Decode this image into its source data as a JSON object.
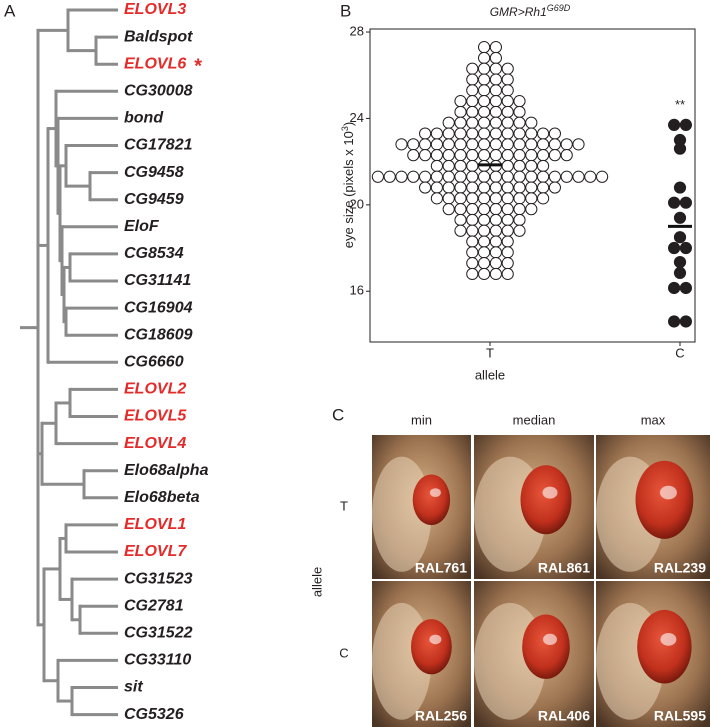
{
  "tree_panel": {
    "label": "A",
    "leaves": [
      {
        "name": "ELOVL3",
        "color": "#e52a2a"
      },
      {
        "name": "Baldspot",
        "color": "#231f20"
      },
      {
        "name": "ELOVL6",
        "color": "#e52a2a",
        "marker": "*"
      },
      {
        "name": "CG30008",
        "color": "#231f20"
      },
      {
        "name": "bond",
        "color": "#231f20"
      },
      {
        "name": "CG17821",
        "color": "#231f20"
      },
      {
        "name": "CG9458",
        "color": "#231f20"
      },
      {
        "name": "CG9459",
        "color": "#231f20"
      },
      {
        "name": "EloF",
        "color": "#231f20"
      },
      {
        "name": "CG8534",
        "color": "#231f20"
      },
      {
        "name": "CG31141",
        "color": "#231f20"
      },
      {
        "name": "CG16904",
        "color": "#231f20"
      },
      {
        "name": "CG18609",
        "color": "#231f20"
      },
      {
        "name": "CG6660",
        "color": "#231f20"
      },
      {
        "name": "ELOVL2",
        "color": "#e52a2a"
      },
      {
        "name": "ELOVL5",
        "color": "#e52a2a"
      },
      {
        "name": "ELOVL4",
        "color": "#e52a2a"
      },
      {
        "name": "Elo68alpha",
        "color": "#231f20"
      },
      {
        "name": "Elo68beta",
        "color": "#231f20"
      },
      {
        "name": "ELOVL1",
        "color": "#e52a2a"
      },
      {
        "name": "ELOVL7",
        "color": "#e52a2a"
      },
      {
        "name": "CG31523",
        "color": "#231f20"
      },
      {
        "name": "CG2781",
        "color": "#231f20"
      },
      {
        "name": "CG31522",
        "color": "#231f20"
      },
      {
        "name": "CG33110",
        "color": "#231f20"
      },
      {
        "name": "sit",
        "color": "#231f20"
      },
      {
        "name": "CG5326",
        "color": "#231f20"
      }
    ]
  },
  "chart_data": {
    "type": "beeswarm",
    "panel_label": "B",
    "title": "GMR>Rh1",
    "title_superscript": "G69D",
    "ylabel": "eye size (pixels x 10",
    "ylabel_superscript": "3",
    "ylabel_suffix": ")",
    "xlabel": "allele",
    "categories": [
      "T",
      "C"
    ],
    "colors": [
      "#ffffff",
      "#231f20"
    ],
    "values": [
      [
        27.3,
        27.3,
        26.8,
        26.8,
        26.3,
        26.3,
        26.3,
        26.3,
        25.8,
        25.8,
        25.8,
        25.8,
        25.3,
        25.3,
        25.3,
        25.3,
        24.8,
        24.8,
        24.8,
        24.8,
        24.8,
        24.8,
        24.3,
        24.3,
        24.3,
        24.3,
        24.3,
        24.3,
        23.8,
        23.8,
        23.8,
        23.8,
        23.8,
        23.8,
        23.8,
        23.8,
        23.3,
        23.3,
        23.3,
        23.3,
        23.3,
        23.3,
        23.3,
        23.3,
        23.3,
        23.3,
        23.3,
        23.3,
        22.8,
        22.8,
        22.8,
        22.8,
        22.8,
        22.8,
        22.8,
        22.8,
        22.8,
        22.8,
        22.8,
        22.8,
        22.8,
        22.8,
        22.8,
        22.8,
        22.3,
        22.3,
        22.3,
        22.3,
        22.3,
        22.3,
        22.3,
        22.3,
        22.3,
        22.3,
        22.3,
        22.3,
        22.3,
        22.3,
        21.8,
        21.8,
        21.8,
        21.8,
        21.8,
        21.8,
        21.8,
        21.8,
        21.8,
        21.8,
        21.3,
        21.3,
        21.3,
        21.3,
        21.3,
        21.3,
        21.3,
        21.3,
        21.3,
        21.3,
        21.3,
        21.3,
        21.3,
        21.3,
        21.3,
        21.3,
        21.3,
        21.3,
        21.3,
        21.3,
        20.8,
        20.8,
        20.8,
        20.8,
        20.8,
        20.8,
        20.8,
        20.8,
        20.8,
        20.8,
        20.8,
        20.8,
        20.3,
        20.3,
        20.3,
        20.3,
        20.3,
        20.3,
        20.3,
        20.3,
        20.3,
        20.3,
        19.8,
        19.8,
        19.8,
        19.8,
        19.8,
        19.8,
        19.8,
        19.8,
        19.3,
        19.3,
        19.3,
        19.3,
        19.3,
        19.3,
        18.8,
        18.8,
        18.8,
        18.8,
        18.8,
        18.8,
        18.3,
        18.3,
        18.3,
        18.3,
        17.8,
        17.8,
        17.8,
        17.8,
        17.3,
        17.3,
        17.3,
        17.3,
        16.8,
        16.8,
        16.8,
        16.8
      ],
      [
        23.7,
        23.7,
        23.0,
        22.6,
        20.8,
        20.1,
        20.1,
        19.4,
        18.5,
        18.0,
        18.0,
        17.35,
        16.85,
        16.15,
        16.15,
        14.6,
        14.6
      ]
    ],
    "means": [
      21.85,
      19.0
    ],
    "annotations": [
      {
        "text": "**",
        "category": 1,
        "y": 24.6
      }
    ],
    "ylim": [
      13.65,
      28.14
    ],
    "yticks": [
      16,
      20,
      24,
      28
    ]
  },
  "photo_grid": {
    "label": "C",
    "columns": [
      "min",
      "median",
      "max"
    ],
    "row_label": "allele",
    "rows": [
      {
        "label": "T",
        "samples": [
          "RAL761",
          "RAL861",
          "RAL239"
        ]
      },
      {
        "label": "C",
        "samples": [
          "RAL256",
          "RAL406",
          "RAL595"
        ]
      }
    ]
  }
}
